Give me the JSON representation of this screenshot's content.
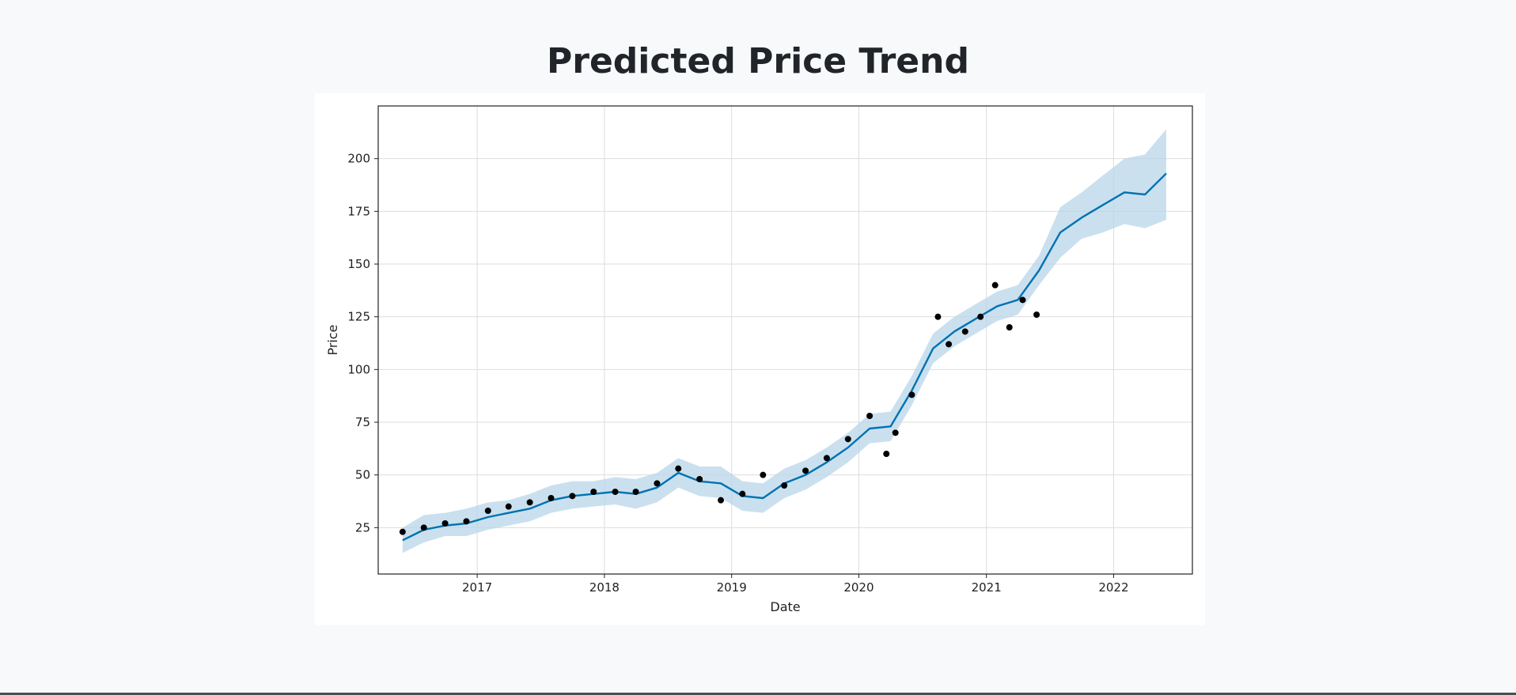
{
  "page": {
    "title": "Predicted Price Trend"
  },
  "chart_data": {
    "type": "line",
    "xlabel": "Date",
    "ylabel": "Price",
    "x_ticks": [
      "2017",
      "2018",
      "2019",
      "2020",
      "2021",
      "2022"
    ],
    "y_ticks": [
      25,
      50,
      75,
      100,
      125,
      150,
      175,
      200
    ],
    "xlim": [
      "2016-03-23",
      "2022-08-15"
    ],
    "ylim": [
      3,
      225
    ],
    "grid": true,
    "legend": "none",
    "colors": {
      "forecast": "#0072b2",
      "band": "#b8d5ea",
      "observed": "#000000"
    },
    "series": [
      {
        "kind": "forecast",
        "x": [
          "2016-06-01",
          "2016-08-01",
          "2016-10-01",
          "2016-12-01",
          "2017-02-01",
          "2017-04-01",
          "2017-06-01",
          "2017-08-01",
          "2017-10-01",
          "2017-12-01",
          "2018-02-01",
          "2018-04-01",
          "2018-06-01",
          "2018-08-01",
          "2018-10-01",
          "2018-12-01",
          "2019-02-01",
          "2019-04-01",
          "2019-06-01",
          "2019-08-01",
          "2019-10-01",
          "2019-12-01",
          "2020-02-01",
          "2020-04-01",
          "2020-06-01",
          "2020-08-01",
          "2020-10-01",
          "2020-12-01",
          "2021-02-01",
          "2021-04-01",
          "2021-06-01",
          "2021-08-01",
          "2021-10-01",
          "2021-12-01",
          "2022-02-01",
          "2022-04-01",
          "2022-06-01"
        ],
        "y": [
          19,
          24,
          26,
          27,
          30,
          32,
          34,
          38,
          40,
          41,
          42,
          41,
          44,
          51,
          47,
          46,
          40,
          39,
          46,
          50,
          56,
          63,
          72,
          73,
          90,
          110,
          118,
          124,
          130,
          133,
          147,
          165,
          172,
          178,
          184,
          183,
          193
        ],
        "upper": [
          25,
          31,
          32,
          34,
          37,
          38,
          41,
          45,
          47,
          47,
          49,
          48,
          51,
          58,
          54,
          54,
          47,
          46,
          53,
          57,
          63,
          70,
          79,
          80,
          97,
          117,
          125,
          131,
          137,
          140,
          154,
          177,
          184,
          192,
          200,
          202,
          214
        ],
        "lower": [
          13,
          18,
          21,
          21,
          24,
          26,
          28,
          32,
          34,
          35,
          36,
          34,
          37,
          44,
          40,
          39,
          33,
          32,
          39,
          43,
          49,
          56,
          65,
          66,
          83,
          103,
          111,
          117,
          123,
          126,
          140,
          153,
          162,
          165,
          169,
          167,
          171
        ]
      },
      {
        "kind": "observed",
        "x": [
          "2016-06-01",
          "2016-08-01",
          "2016-10-01",
          "2016-12-01",
          "2017-02-01",
          "2017-04-01",
          "2017-06-01",
          "2017-08-01",
          "2017-10-01",
          "2017-12-01",
          "2018-02-01",
          "2018-04-01",
          "2018-06-01",
          "2018-08-01",
          "2018-10-01",
          "2018-12-01",
          "2019-02-01",
          "2019-04-01",
          "2019-06-01",
          "2019-08-01",
          "2019-10-01",
          "2019-12-01",
          "2020-02-01",
          "2020-03-20",
          "2020-04-15",
          "2020-06-01",
          "2020-08-15",
          "2020-09-15",
          "2020-11-01",
          "2020-12-15",
          "2021-01-26",
          "2021-03-08",
          "2021-04-15",
          "2021-05-25"
        ],
        "y": [
          23,
          25,
          27,
          28,
          33,
          35,
          37,
          39,
          40,
          42,
          42,
          42,
          46,
          53,
          48,
          38,
          41,
          50,
          45,
          52,
          58,
          67,
          78,
          60,
          70,
          88,
          125,
          112,
          118,
          125,
          140,
          120,
          133,
          126
        ]
      }
    ]
  }
}
